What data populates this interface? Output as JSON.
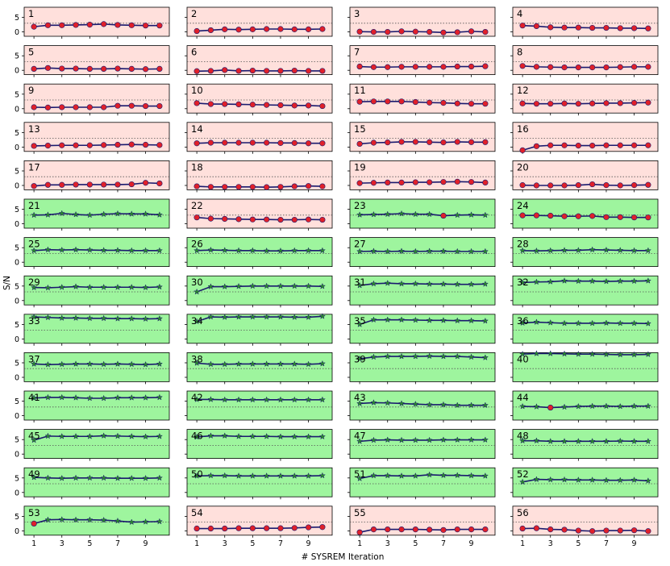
{
  "chart_data": {
    "type": "line",
    "layout": "small-multiples-grid",
    "rows": 14,
    "cols": 4,
    "xlabel": "# SYSREM Iteration",
    "ylabel": "S/N",
    "x": [
      1,
      2,
      3,
      4,
      5,
      6,
      7,
      8,
      9,
      10
    ],
    "xticks": [
      1,
      3,
      5,
      7,
      9
    ],
    "yticks": [
      0,
      5
    ],
    "ylim": [
      -1.5,
      8.5
    ],
    "threshold": 3,
    "colors": {
      "background_fail": "#ffe0dc",
      "background_pass": "#9ef59e",
      "line": "#1a1a6e",
      "marker_pass": "#2a8a2a",
      "marker_fail": "#e0202a",
      "threshold": "#555555"
    },
    "panels": [
      {
        "label": "1",
        "status": "fail",
        "values": [
          1.8,
          2.3,
          2.3,
          2.4,
          2.5,
          2.7,
          2.4,
          2.3,
          2.2,
          2.2
        ]
      },
      {
        "label": "2",
        "status": "fail",
        "values": [
          0.3,
          0.6,
          0.9,
          0.8,
          0.9,
          1.0,
          1.0,
          0.9,
          0.9,
          1.0
        ]
      },
      {
        "label": "3",
        "status": "fail",
        "values": [
          0.1,
          0.0,
          0.0,
          0.2,
          0.1,
          0.0,
          -0.2,
          -0.1,
          0.2,
          0.0
        ]
      },
      {
        "label": "4",
        "status": "fail",
        "values": [
          2.2,
          2.0,
          1.6,
          1.5,
          1.5,
          1.4,
          1.4,
          1.3,
          1.3,
          1.2
        ]
      },
      {
        "label": "5",
        "status": "fail",
        "values": [
          0.5,
          0.8,
          0.6,
          0.6,
          0.5,
          0.5,
          0.6,
          0.5,
          0.4,
          0.5
        ]
      },
      {
        "label": "6",
        "status": "fail",
        "values": [
          -0.3,
          -0.2,
          0.1,
          -0.2,
          -0.1,
          -0.2,
          -0.2,
          -0.1,
          -0.2,
          -0.2
        ]
      },
      {
        "label": "7",
        "status": "fail",
        "values": [
          1.3,
          1.1,
          1.1,
          1.2,
          1.2,
          1.2,
          1.2,
          1.3,
          1.3,
          1.4
        ]
      },
      {
        "label": "8",
        "status": "fail",
        "values": [
          1.5,
          1.2,
          1.1,
          1.0,
          1.0,
          1.0,
          1.0,
          1.1,
          1.2,
          1.2
        ]
      },
      {
        "label": "9",
        "status": "fail",
        "values": [
          0.5,
          0.4,
          0.5,
          0.5,
          0.5,
          0.5,
          1.0,
          1.0,
          0.9,
          0.9
        ]
      },
      {
        "label": "10",
        "status": "fail",
        "values": [
          1.9,
          1.6,
          1.6,
          1.5,
          1.4,
          1.3,
          1.2,
          1.1,
          1.1,
          0.9
        ]
      },
      {
        "label": "11",
        "status": "fail",
        "values": [
          2.4,
          2.5,
          2.5,
          2.5,
          2.3,
          2.1,
          2.0,
          1.8,
          1.7,
          1.7
        ]
      },
      {
        "label": "12",
        "status": "fail",
        "values": [
          1.8,
          1.7,
          1.7,
          1.8,
          1.7,
          1.8,
          1.9,
          1.9,
          2.0,
          2.1
        ]
      },
      {
        "label": "13",
        "status": "fail",
        "values": [
          0.4,
          0.5,
          0.6,
          0.6,
          0.6,
          0.7,
          0.8,
          0.9,
          0.8,
          0.7
        ]
      },
      {
        "label": "14",
        "status": "fail",
        "values": [
          1.3,
          1.5,
          1.5,
          1.5,
          1.5,
          1.5,
          1.4,
          1.4,
          1.3,
          1.3
        ]
      },
      {
        "label": "15",
        "status": "fail",
        "values": [
          1.1,
          1.5,
          1.6,
          1.8,
          1.8,
          1.7,
          1.6,
          1.8,
          1.7,
          1.7
        ]
      },
      {
        "label": "16",
        "status": "fail",
        "values": [
          -1.1,
          0.3,
          0.6,
          0.6,
          0.5,
          0.5,
          0.6,
          0.6,
          0.6,
          0.6
        ]
      },
      {
        "label": "17",
        "status": "fail",
        "values": [
          -0.2,
          0.2,
          0.2,
          0.3,
          0.3,
          0.3,
          0.3,
          0.4,
          0.9,
          0.7
        ]
      },
      {
        "label": "18",
        "status": "fail",
        "values": [
          -0.3,
          -0.5,
          -0.5,
          -0.5,
          -0.5,
          -0.6,
          -0.5,
          -0.3,
          -0.2,
          -0.3
        ]
      },
      {
        "label": "19",
        "status": "fail",
        "values": [
          0.8,
          0.9,
          1.0,
          1.0,
          1.1,
          1.1,
          1.2,
          1.3,
          1.2,
          1.0
        ]
      },
      {
        "label": "20",
        "status": "fail",
        "values": [
          0.1,
          0.0,
          0.0,
          0.0,
          0.1,
          0.4,
          0.1,
          0.0,
          0.1,
          0.2
        ]
      },
      {
        "label": "21",
        "status": "pass",
        "values": [
          3.0,
          3.1,
          3.6,
          3.2,
          3.0,
          3.3,
          3.5,
          3.4,
          3.4,
          3.1
        ]
      },
      {
        "label": "22",
        "status": "fail",
        "values": [
          2.2,
          1.8,
          1.7,
          1.6,
          1.5,
          1.5,
          1.4,
          1.4,
          1.5,
          1.4
        ]
      },
      {
        "label": "23",
        "status": "pass",
        "values": [
          3.1,
          3.2,
          3.3,
          3.5,
          3.3,
          3.3,
          2.8,
          3.0,
          3.1,
          3.0
        ]
      },
      {
        "label": "24",
        "status": "pass",
        "values": [
          2.9,
          2.9,
          2.8,
          2.6,
          2.6,
          2.7,
          2.3,
          2.3,
          2.2,
          2.2
        ]
      },
      {
        "label": "25",
        "status": "pass",
        "values": [
          4.0,
          4.3,
          4.2,
          4.3,
          4.2,
          4.1,
          4.1,
          4.0,
          4.0,
          4.0
        ]
      },
      {
        "label": "26",
        "status": "pass",
        "values": [
          4.0,
          4.2,
          4.1,
          4.0,
          4.0,
          3.9,
          3.9,
          4.0,
          4.0,
          4.0
        ]
      },
      {
        "label": "27",
        "status": "pass",
        "values": [
          3.7,
          3.8,
          3.7,
          3.8,
          3.7,
          3.8,
          3.8,
          3.7,
          3.7,
          3.7
        ]
      },
      {
        "label": "28",
        "status": "pass",
        "values": [
          4.0,
          3.9,
          4.0,
          4.1,
          4.1,
          4.3,
          4.2,
          4.1,
          4.0,
          4.0
        ]
      },
      {
        "label": "29",
        "status": "pass",
        "values": [
          4.5,
          4.4,
          4.6,
          4.8,
          4.6,
          4.6,
          4.6,
          4.6,
          4.5,
          4.7
        ]
      },
      {
        "label": "30",
        "status": "pass",
        "values": [
          3.0,
          4.8,
          4.8,
          4.9,
          5.0,
          5.0,
          5.0,
          5.0,
          5.0,
          4.9
        ]
      },
      {
        "label": "31",
        "status": "pass",
        "values": [
          5.2,
          5.8,
          6.0,
          5.8,
          5.8,
          5.7,
          5.7,
          5.6,
          5.6,
          5.7
        ]
      },
      {
        "label": "32",
        "status": "pass",
        "values": [
          6.2,
          6.4,
          6.5,
          6.8,
          6.7,
          6.7,
          6.6,
          6.7,
          6.7,
          6.8
        ]
      },
      {
        "label": "33",
        "status": "pass",
        "values": [
          7.6,
          7.4,
          7.2,
          7.2,
          7.1,
          7.1,
          7.0,
          7.0,
          6.9,
          7.0
        ]
      },
      {
        "label": "34",
        "status": "pass",
        "values": [
          6.0,
          7.6,
          7.5,
          7.6,
          7.6,
          7.6,
          7.6,
          7.5,
          7.5,
          7.8
        ]
      },
      {
        "label": "35",
        "status": "pass",
        "values": [
          5.0,
          6.6,
          6.6,
          6.6,
          6.5,
          6.4,
          6.4,
          6.3,
          6.3,
          6.2
        ]
      },
      {
        "label": "36",
        "status": "pass",
        "values": [
          5.5,
          5.8,
          5.6,
          5.4,
          5.4,
          5.4,
          5.5,
          5.4,
          5.4,
          5.3
        ]
      },
      {
        "label": "37",
        "status": "pass",
        "values": [
          4.6,
          4.4,
          4.5,
          4.6,
          4.6,
          4.5,
          4.6,
          4.5,
          4.4,
          4.6
        ]
      },
      {
        "label": "38",
        "status": "pass",
        "values": [
          4.9,
          4.5,
          4.5,
          4.6,
          4.6,
          4.6,
          4.6,
          4.6,
          4.5,
          4.7
        ]
      },
      {
        "label": "39",
        "status": "pass",
        "values": [
          6.4,
          7.0,
          7.2,
          7.2,
          7.2,
          7.3,
          7.2,
          7.2,
          7.0,
          6.8
        ]
      },
      {
        "label": "40",
        "status": "pass",
        "values": [
          8.0,
          8.2,
          8.2,
          8.1,
          8.0,
          8.0,
          7.9,
          7.8,
          7.8,
          7.9
        ]
      },
      {
        "label": "41",
        "status": "pass",
        "values": [
          6.1,
          6.3,
          6.3,
          6.2,
          6.0,
          6.0,
          6.2,
          6.2,
          6.2,
          6.3
        ]
      },
      {
        "label": "42",
        "status": "pass",
        "values": [
          5.6,
          5.6,
          5.5,
          5.5,
          5.5,
          5.5,
          5.5,
          5.5,
          5.5,
          5.5
        ]
      },
      {
        "label": "43",
        "status": "pass",
        "values": [
          4.2,
          4.5,
          4.4,
          4.2,
          4.0,
          3.8,
          3.8,
          3.6,
          3.6,
          3.6
        ]
      },
      {
        "label": "44",
        "status": "pass",
        "values": [
          3.2,
          3.1,
          2.8,
          3.0,
          3.2,
          3.3,
          3.3,
          3.2,
          3.3,
          3.3
        ]
      },
      {
        "label": "45",
        "status": "pass",
        "values": [
          4.8,
          6.2,
          6.1,
          6.1,
          6.1,
          6.3,
          6.2,
          6.1,
          6.0,
          6.1
        ]
      },
      {
        "label": "46",
        "status": "pass",
        "values": [
          5.9,
          6.3,
          6.3,
          6.1,
          6.1,
          6.1,
          6.0,
          6.0,
          6.0,
          6.0
        ]
      },
      {
        "label": "47",
        "status": "pass",
        "values": [
          4.4,
          4.8,
          4.9,
          4.8,
          4.8,
          4.8,
          4.9,
          4.9,
          4.9,
          4.9
        ]
      },
      {
        "label": "48",
        "status": "pass",
        "values": [
          4.6,
          4.6,
          4.4,
          4.4,
          4.4,
          4.4,
          4.4,
          4.5,
          4.4,
          4.4
        ]
      },
      {
        "label": "49",
        "status": "pass",
        "values": [
          5.2,
          5.0,
          4.9,
          5.0,
          5.0,
          5.0,
          4.9,
          4.9,
          4.9,
          5.0
        ]
      },
      {
        "label": "50",
        "status": "pass",
        "values": [
          5.7,
          5.8,
          5.8,
          5.7,
          5.7,
          5.7,
          5.7,
          5.7,
          5.7,
          5.8
        ]
      },
      {
        "label": "51",
        "status": "pass",
        "values": [
          4.8,
          5.8,
          5.8,
          5.7,
          5.7,
          6.1,
          5.9,
          5.9,
          5.8,
          5.7
        ]
      },
      {
        "label": "52",
        "status": "pass",
        "values": [
          3.6,
          4.5,
          4.4,
          4.4,
          4.3,
          4.3,
          4.2,
          4.2,
          4.3,
          4.0
        ]
      },
      {
        "label": "53",
        "status": "pass",
        "values": [
          2.5,
          3.8,
          3.9,
          3.8,
          3.8,
          3.7,
          3.4,
          3.0,
          3.1,
          3.2
        ]
      },
      {
        "label": "54",
        "status": "fail",
        "values": [
          0.8,
          0.8,
          0.8,
          0.9,
          0.9,
          0.9,
          0.9,
          1.0,
          1.2,
          1.3
        ]
      },
      {
        "label": "55",
        "status": "fail",
        "values": [
          -0.5,
          0.5,
          0.5,
          0.5,
          0.5,
          0.4,
          0.3,
          0.5,
          0.5,
          0.5
        ]
      },
      {
        "label": "56",
        "status": "fail",
        "values": [
          0.8,
          0.9,
          0.5,
          0.4,
          0.1,
          -0.1,
          0.1,
          0.1,
          0.2,
          -0.1
        ]
      }
    ]
  }
}
